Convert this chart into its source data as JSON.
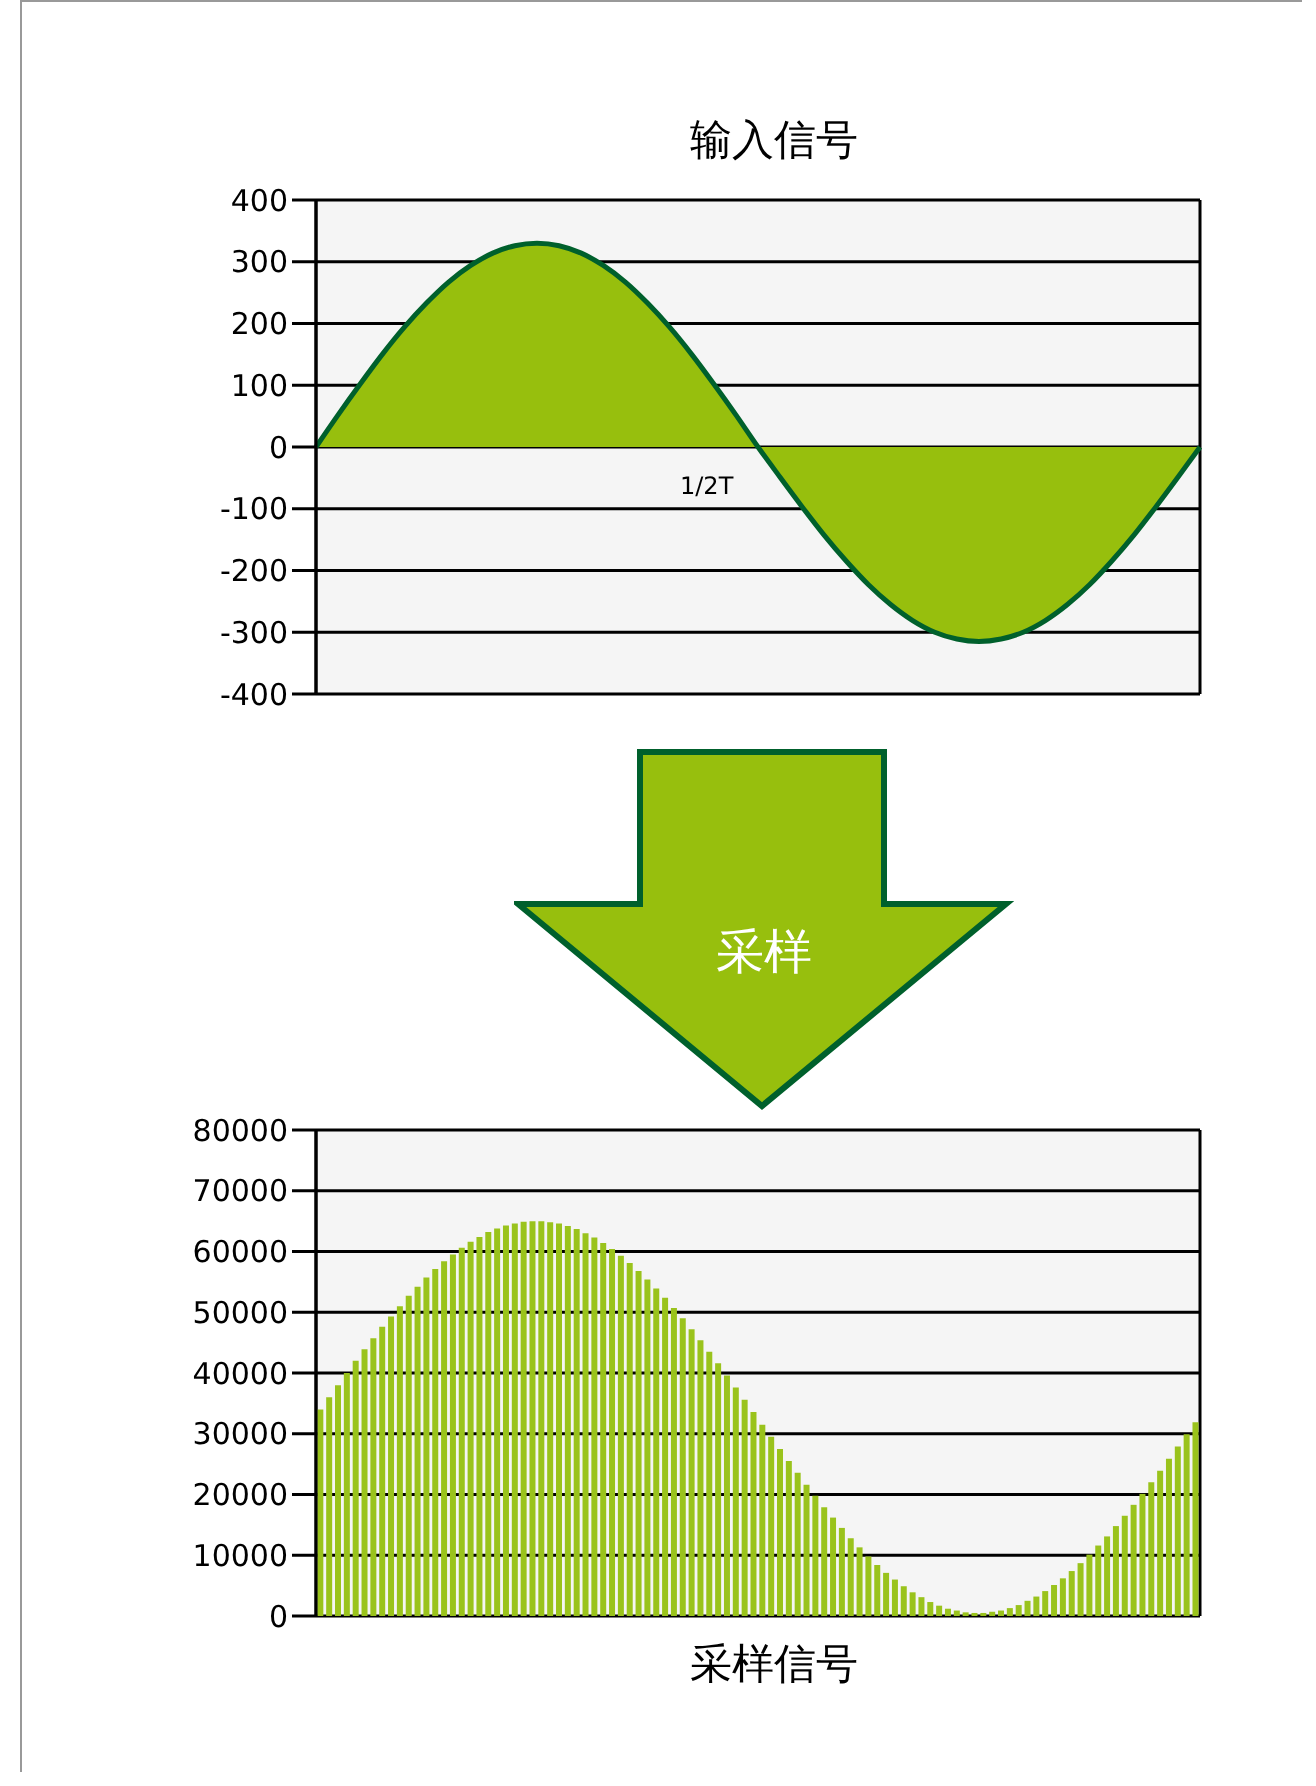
{
  "chart_data": [
    {
      "type": "area",
      "title": "输入信号",
      "categories": [
        null,
        null,
        null,
        null,
        null,
        null,
        null,
        null,
        null,
        null,
        null,
        null,
        null,
        null,
        null,
        null,
        null,
        null,
        null,
        null,
        null,
        null,
        null,
        null,
        null,
        null,
        null,
        null,
        null,
        null,
        null,
        null,
        null,
        null,
        null,
        null,
        null,
        null,
        null,
        null,
        null
      ],
      "series": [
        {
          "color": "#97bf0d",
          "values": [
            0,
            52,
            102,
            150,
            194,
            233,
            267,
            294,
            314,
            326,
            330,
            326,
            314,
            294,
            267,
            233,
            194,
            150,
            102,
            52,
            0,
            -49,
            -97,
            -143,
            -185,
            -223,
            -255,
            -281,
            -300,
            -311,
            -315,
            -311,
            -300,
            -281,
            -255,
            -223,
            -185,
            -143,
            -97,
            -49,
            0
          ]
        }
      ],
      "ylim": [
        -400,
        400
      ],
      "yticks": [
        -400,
        -300,
        -200,
        -100,
        0,
        100,
        200,
        300,
        400
      ],
      "grid": "y",
      "tick_labels": "y",
      "annotations": [
        "1/2T"
      ]
    },
    {
      "type": "bar",
      "xlabel": "采样信号",
      "categories": [
        null,
        null,
        null,
        null,
        null,
        null,
        null,
        null,
        null,
        null,
        null,
        null,
        null,
        null,
        null,
        null,
        null,
        null,
        null,
        null,
        null,
        null,
        null,
        null,
        null,
        null,
        null,
        null,
        null,
        null,
        null,
        null,
        null,
        null,
        null,
        null,
        null,
        null,
        null,
        null,
        null,
        null,
        null,
        null,
        null,
        null,
        null,
        null,
        null,
        null,
        null,
        null,
        null,
        null,
        null,
        null,
        null,
        null,
        null,
        null,
        null,
        null,
        null,
        null,
        null,
        null,
        null,
        null,
        null,
        null,
        null,
        null,
        null,
        null,
        null,
        null,
        null,
        null,
        null,
        null,
        null,
        null,
        null,
        null,
        null,
        null,
        null,
        null,
        null,
        null,
        null,
        null,
        null,
        null,
        null,
        null,
        null,
        null,
        null,
        null
      ],
      "series": [
        {
          "color": "#9ac31c",
          "values": [
            34000,
            36000,
            38000,
            40000,
            42000,
            43900,
            45700,
            47600,
            49300,
            51000,
            52700,
            54200,
            55700,
            57100,
            58400,
            59500,
            60600,
            61600,
            62400,
            63200,
            63800,
            64300,
            64600,
            64900,
            65000,
            65000,
            64800,
            64600,
            64200,
            63700,
            63000,
            62300,
            61400,
            60400,
            59300,
            58100,
            56800,
            55400,
            53900,
            52400,
            50700,
            49000,
            47200,
            45400,
            43500,
            41600,
            39600,
            37600,
            35600,
            33600,
            31500,
            29500,
            27500,
            25500,
            23600,
            21600,
            19800,
            17900,
            16200,
            14500,
            12800,
            11300,
            9800,
            8400,
            7100,
            6000,
            4900,
            3900,
            3100,
            2300,
            1700,
            1200,
            900,
            600,
            500,
            500,
            700,
            900,
            1300,
            1800,
            2500,
            3200,
            4100,
            5100,
            6200,
            7400,
            8700,
            10100,
            11600,
            13100,
            14800,
            16500,
            18300,
            20100,
            22000,
            23900,
            25900,
            27900,
            29900,
            31900
          ]
        }
      ],
      "ylim": [
        0,
        80000
      ],
      "yticks": [
        0,
        10000,
        20000,
        30000,
        40000,
        50000,
        60000,
        70000,
        80000
      ],
      "grid": "y",
      "tick_labels": "y",
      "annotations": [
        "采样"
      ]
    }
  ]
}
